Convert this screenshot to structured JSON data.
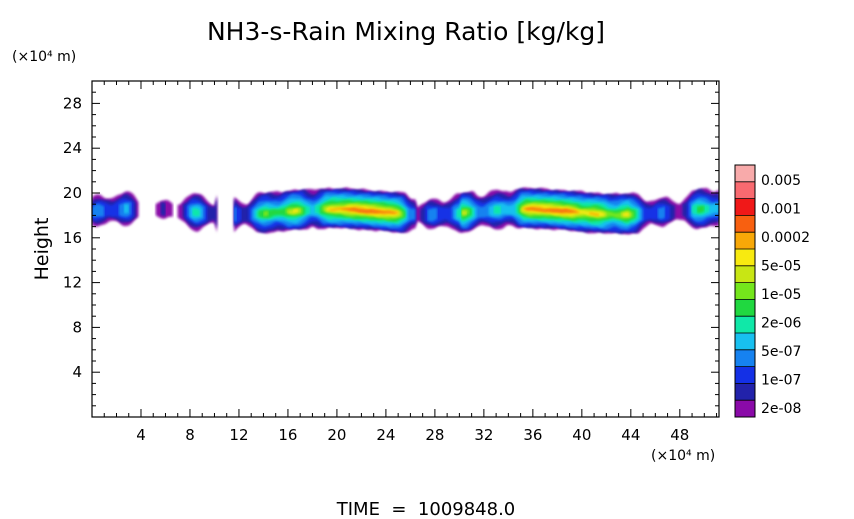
{
  "chart_data": {
    "type": "heatmap",
    "title": "NH3-s-Rain Mixing Ratio [kg/kg]",
    "xlabel": "",
    "ylabel": "Height",
    "x_unit": "(×10⁴ m)",
    "y_unit": "(×10⁴ m)",
    "xlim": [
      0,
      51.2
    ],
    "ylim": [
      0,
      30
    ],
    "x_ticks": [
      4,
      8,
      12,
      16,
      20,
      24,
      28,
      32,
      36,
      40,
      44,
      48
    ],
    "y_ticks": [
      4,
      8,
      12,
      16,
      20,
      24,
      28
    ],
    "grid": false,
    "colorbar": {
      "position": "right",
      "labels": [
        "0.005",
        "0.001",
        "0.0002",
        "5e-05",
        "1e-05",
        "2e-06",
        "5e-07",
        "1e-07",
        "2e-08"
      ],
      "colors": [
        "#8a0aa8",
        "#2222aa",
        "#1430e6",
        "#1682f0",
        "#18c0f0",
        "#10e8a8",
        "#20d840",
        "#74e61c",
        "#c8e614",
        "#f8ea10",
        "#f8a808",
        "#f86010",
        "#f01818",
        "#f86a70",
        "#f8aaaa"
      ]
    },
    "cloud_band": {
      "x_range": [
        0,
        51.2
      ],
      "y_range": [
        16.5,
        20.2
      ],
      "max_level_x": [
        22,
        38.5
      ],
      "max_level_y": 18.3
    },
    "footer": "TIME  =  1009848.0"
  }
}
